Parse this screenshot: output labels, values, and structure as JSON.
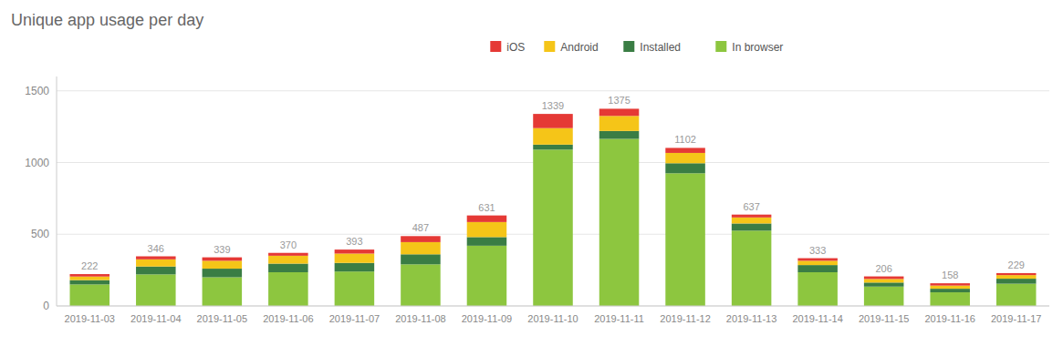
{
  "chart_data": {
    "type": "bar",
    "stacked": true,
    "title": "Unique app usage per day",
    "categories": [
      "2019-11-03",
      "2019-11-04",
      "2019-11-05",
      "2019-11-06",
      "2019-11-07",
      "2019-11-08",
      "2019-11-09",
      "2019-11-10",
      "2019-11-11",
      "2019-11-12",
      "2019-11-13",
      "2019-11-14",
      "2019-11-15",
      "2019-11-16",
      "2019-11-17"
    ],
    "series": [
      {
        "name": "In browser",
        "color": "#8dc63f",
        "values": [
          150,
          220,
          200,
          235,
          240,
          290,
          420,
          1090,
          1165,
          925,
          525,
          235,
          135,
          95,
          155
        ]
      },
      {
        "name": "Installed",
        "color": "#3a7d44",
        "values": [
          30,
          55,
          60,
          60,
          60,
          70,
          60,
          35,
          55,
          70,
          50,
          50,
          28,
          25,
          35
        ]
      },
      {
        "name": "Android",
        "color": "#f5c518",
        "values": [
          25,
          50,
          55,
          55,
          65,
          85,
          105,
          115,
          105,
          72,
          42,
          30,
          25,
          22,
          25
        ]
      },
      {
        "name": "iOS",
        "color": "#e53935",
        "values": [
          17,
          21,
          24,
          20,
          28,
          42,
          46,
          99,
          50,
          35,
          20,
          18,
          18,
          16,
          14
        ]
      }
    ],
    "totals": [
      222,
      346,
      339,
      370,
      393,
      487,
      631,
      1339,
      1375,
      1102,
      637,
      333,
      206,
      158,
      229
    ],
    "ylim": [
      0,
      1600
    ],
    "yticks": [
      0,
      500,
      1000,
      1500
    ],
    "grid": true,
    "legend": "top"
  }
}
